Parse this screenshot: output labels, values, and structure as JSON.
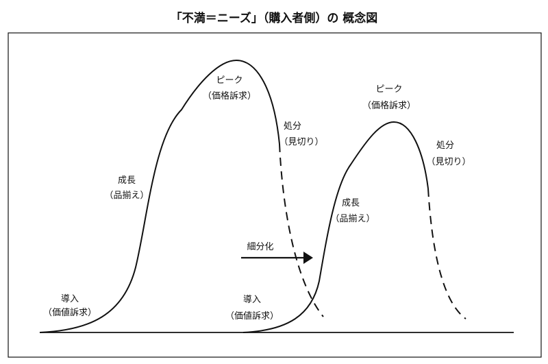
{
  "title": "「不満＝ニーズ」（購入者側）の 概念図",
  "cycle1": {
    "intro": {
      "label": "導入",
      "sub": "（価値訴求）"
    },
    "growth": {
      "label": "成長",
      "sub": "（品揃え）"
    },
    "peak": {
      "label": "ピーク",
      "sub": "（価格訴求）"
    },
    "disposal": {
      "label": "処分",
      "sub": "（見切り）"
    }
  },
  "cycle2": {
    "intro": {
      "label": "導入",
      "sub": "（価値訴求）"
    },
    "growth": {
      "label": "成長",
      "sub": "（品揃え）"
    },
    "peak": {
      "label": "ピーク",
      "sub": "（価格訴求）"
    },
    "disposal": {
      "label": "処分",
      "sub": "（見切り）"
    }
  },
  "arrow_label": "細分化"
}
